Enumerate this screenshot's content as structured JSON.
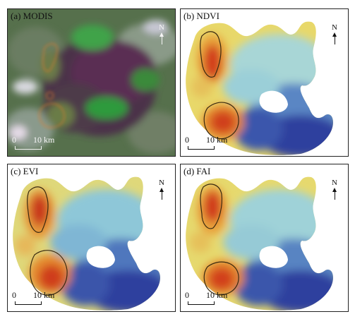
{
  "panels": [
    {
      "label": "(a) MODIS",
      "north": "N",
      "scale_start": "0",
      "scale_end": "10 km"
    },
    {
      "label": "(b) NDVI",
      "north": "N",
      "scale_start": "0",
      "scale_end": "10 km"
    },
    {
      "label": "(c) EVI",
      "north": "N",
      "scale_start": "0",
      "scale_end": "10 km"
    },
    {
      "label": "(d) FAI",
      "north": "N",
      "scale_start": "0",
      "scale_end": "10 km"
    }
  ],
  "colors": {
    "high": "#d23a1a",
    "mid_high": "#e8983a",
    "mid": "#e8d86a",
    "mid_low": "#9fd0d8",
    "low": "#4a7fc0",
    "lowest": "#2a3f9a",
    "contour": "#3a2a10",
    "modis_land": "#4a6a45",
    "modis_water": "#4a2a45",
    "modis_bloom": "#3fa34a"
  }
}
